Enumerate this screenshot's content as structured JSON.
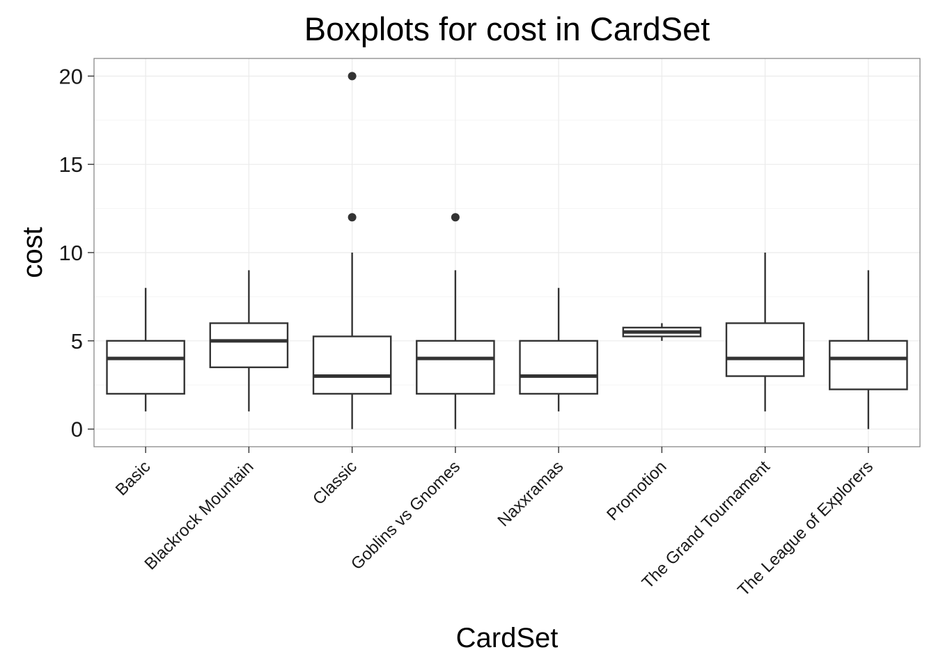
{
  "chart_data": {
    "type": "boxplot",
    "title": "Boxplots for cost in CardSet",
    "xlabel": "CardSet",
    "ylabel": "cost",
    "ylim": [
      -1,
      21
    ],
    "yticks": [
      0,
      5,
      10,
      15,
      20
    ],
    "grid": true,
    "categories": [
      "Basic",
      "Blackrock Mountain",
      "Classic",
      "Goblins vs Gnomes",
      "Naxxramas",
      "Promotion",
      "The Grand Tournament",
      "The League of Explorers"
    ],
    "boxes": [
      {
        "min": 1,
        "q1": 2,
        "median": 4,
        "q3": 5,
        "max": 8,
        "outliers": []
      },
      {
        "min": 1,
        "q1": 3.5,
        "median": 5,
        "q3": 6,
        "max": 9,
        "outliers": []
      },
      {
        "min": 0,
        "q1": 2,
        "median": 3,
        "q3": 5.25,
        "max": 10,
        "outliers": [
          12,
          20
        ]
      },
      {
        "min": 0,
        "q1": 2,
        "median": 4,
        "q3": 5,
        "max": 9,
        "outliers": [
          12
        ]
      },
      {
        "min": 1,
        "q1": 2,
        "median": 3,
        "q3": 5,
        "max": 8,
        "outliers": []
      },
      {
        "min": 5,
        "q1": 5.25,
        "median": 5.5,
        "q3": 5.75,
        "max": 6,
        "outliers": []
      },
      {
        "min": 1,
        "q1": 3,
        "median": 4,
        "q3": 6,
        "max": 10,
        "outliers": []
      },
      {
        "min": 0,
        "q1": 2.25,
        "median": 4,
        "q3": 5,
        "max": 9,
        "outliers": []
      }
    ],
    "colors": {
      "panel_border": "#7f7f7f",
      "grid_major": "#ebebeb",
      "grid_minor": "#f5f5f5",
      "box_stroke": "#333333",
      "outlier_fill": "#333333",
      "box_fill": "#ffffff"
    }
  }
}
